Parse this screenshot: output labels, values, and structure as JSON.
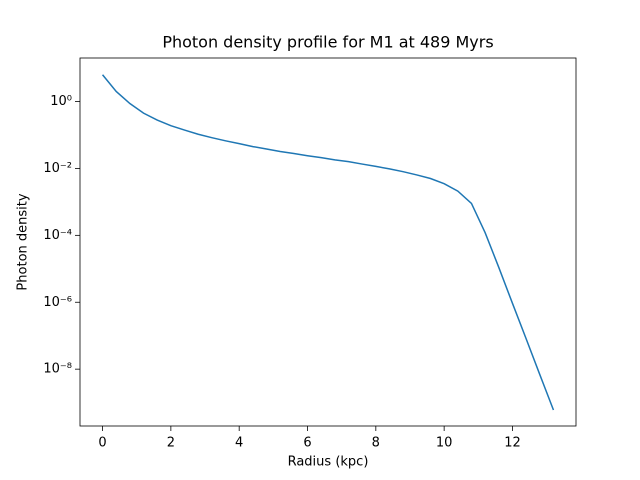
{
  "chart_data": {
    "type": "line",
    "title": "Photon density profile for M1 at 489 Myrs",
    "x_label": "Radius (kpc)",
    "y_label": "Photon density",
    "x": [
      0,
      0.4,
      0.8,
      1.2,
      1.6,
      2.0,
      2.4,
      2.8,
      3.2,
      3.6,
      4.0,
      4.4,
      4.8,
      5.2,
      5.6,
      6.0,
      6.4,
      6.8,
      7.2,
      7.6,
      8.0,
      8.4,
      8.8,
      9.2,
      9.6,
      10.0,
      10.4,
      10.8,
      11.2,
      11.6,
      12.0,
      12.4,
      12.8,
      13.2
    ],
    "series": [
      {
        "color": "#1f77b4",
        "values": [
          6.3,
          2.0,
          0.87,
          0.45,
          0.28,
          0.19,
          0.14,
          0.105,
          0.083,
          0.067,
          0.055,
          0.045,
          0.038,
          0.032,
          0.028,
          0.024,
          0.021,
          0.018,
          0.016,
          0.0135,
          0.0115,
          0.0097,
          0.008,
          0.0064,
          0.005,
          0.0035,
          0.0021,
          0.0009,
          0.00012,
          1.1e-05,
          9.3e-07,
          8.1e-08,
          6.9e-09,
          6e-10
        ]
      }
    ],
    "xlim": [
      -0.66,
      13.86
    ],
    "xticks": [
      0,
      2,
      4,
      6,
      8,
      10,
      12
    ],
    "ylim": [
      2e-10,
      20
    ],
    "log_y": true,
    "yticks": [
      {
        "value": 1e-08,
        "label": "10⁻⁸"
      },
      {
        "value": 1e-06,
        "label": "10⁻⁶"
      },
      {
        "value": 0.0001,
        "label": "10⁻⁴"
      },
      {
        "value": 0.01,
        "label": "10⁻²"
      },
      {
        "value": 1,
        "label": "10⁰"
      }
    ]
  }
}
